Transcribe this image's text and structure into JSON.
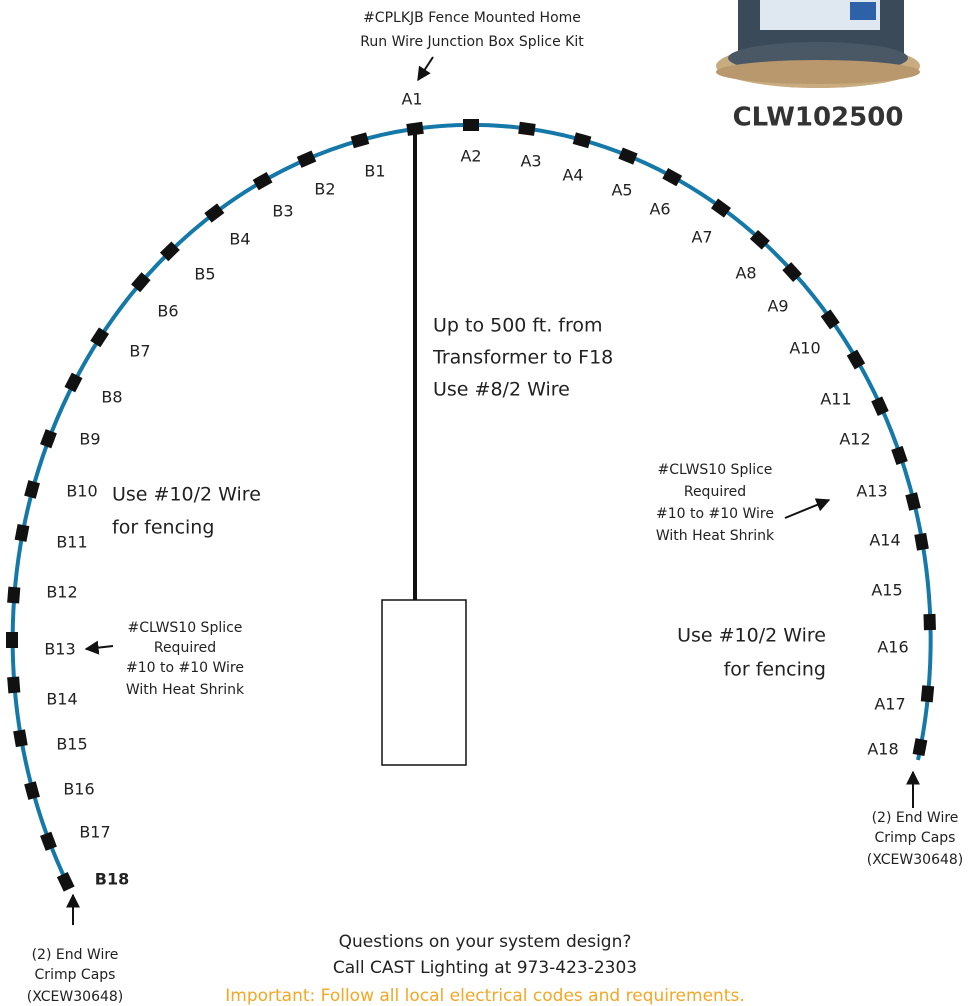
{
  "header": {
    "kit_lines": [
      "#CPLKJB Fence Mounted Home",
      "Run Wire Junction Box Splice Kit"
    ],
    "product_code": "CLW102500"
  },
  "a_labels": [
    "A1",
    "A2",
    "A3",
    "A4",
    "A5",
    "A6",
    "A7",
    "A8",
    "A9",
    "A10",
    "A11",
    "A12",
    "A13",
    "A14",
    "A15",
    "A16",
    "A17",
    "A18"
  ],
  "b_labels": [
    "B1",
    "B2",
    "B3",
    "B4",
    "B5",
    "B6",
    "B7",
    "B8",
    "B9",
    "B10",
    "B11",
    "B12",
    "B13",
    "B14",
    "B15",
    "B16",
    "B17",
    "B18"
  ],
  "notes": {
    "main_run": [
      "Up to 500 ft. from",
      "Transformer to F18",
      "Use #8/2 Wire"
    ],
    "left_fencing": [
      "Use #10/2 Wire",
      "for fencing"
    ],
    "right_fencing": [
      "Use #10/2 Wire",
      "for fencing"
    ],
    "left_splice": [
      "#CLWS10 Splice",
      "Required",
      "#10 to #10 Wire",
      "With Heat Shrink"
    ],
    "right_splice": [
      "#CLWS10 Splice",
      "Required",
      "#10 to #10 Wire",
      "With Heat Shrink"
    ],
    "left_end_caps": [
      "(2) End Wire",
      "Crimp Caps",
      "(XCEW30648)"
    ],
    "right_end_caps": [
      "(2) End Wire",
      "Crimp Caps",
      "(XCEW30648)"
    ]
  },
  "footer": {
    "lines": [
      "Questions on your system design?",
      "Call CAST Lighting at 973-423-2303"
    ],
    "warning": "Important: Follow all local electrical codes and requirements."
  }
}
